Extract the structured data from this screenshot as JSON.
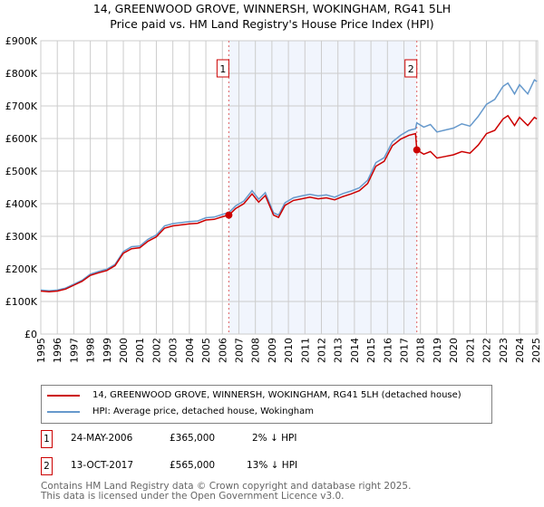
{
  "title": "14, GREENWOOD GROVE, WINNERSH, WOKINGHAM, RG41 5LH",
  "subtitle": "Price paid vs. HM Land Registry's House Price Index (HPI)",
  "chart_data": {
    "type": "line",
    "title": "14, GREENWOOD GROVE, WINNERSH, WOKINGHAM, RG41 5LH",
    "subtitle": "Price paid vs. HM Land Registry's House Price Index (HPI)",
    "xlim": [
      1995,
      2025.1
    ],
    "ylim": [
      0,
      900000
    ],
    "y_ticks": [
      0,
      100000,
      200000,
      300000,
      400000,
      500000,
      600000,
      700000,
      800000,
      900000
    ],
    "y_tick_labels": [
      "£0",
      "£100K",
      "£200K",
      "£300K",
      "£400K",
      "£500K",
      "£600K",
      "£700K",
      "£800K",
      "£900K"
    ],
    "x_ticks": [
      "1995",
      "1996",
      "1997",
      "1998",
      "1999",
      "2000",
      "2001",
      "2002",
      "2003",
      "2004",
      "2005",
      "2006",
      "2007",
      "2008",
      "2009",
      "2010",
      "2011",
      "2012",
      "2013",
      "2014",
      "2015",
      "2016",
      "2017",
      "2018",
      "2019",
      "2020",
      "2021",
      "2022",
      "2023",
      "2024",
      "2025"
    ],
    "grid": true,
    "shaded_range": [
      2006.39,
      2017.78
    ],
    "series": [
      {
        "name": "14, GREENWOOD GROVE, WINNERSH, WOKINGHAM, RG41 5LH (detached house)",
        "color": "#cc0000",
        "x": [
          1995,
          1995.5,
          1996,
          1996.5,
          1997,
          1997.5,
          1998,
          1998.5,
          1999,
          1999.5,
          2000,
          2000.5,
          2001,
          2001.5,
          2002,
          2002.5,
          2003,
          2003.5,
          2004,
          2004.5,
          2005,
          2005.5,
          2006,
          2006.39,
          2006.8,
          2007.3,
          2007.8,
          2008.2,
          2008.6,
          2009.1,
          2009.4,
          2009.8,
          2010.3,
          2010.8,
          2011.3,
          2011.8,
          2012.3,
          2012.8,
          2013.3,
          2013.8,
          2014.3,
          2014.8,
          2015.3,
          2015.8,
          2016.3,
          2016.8,
          2017.3,
          2017.7,
          2017.78,
          2018.2,
          2018.6,
          2019,
          2019.5,
          2020,
          2020.5,
          2021,
          2021.5,
          2022,
          2022.5,
          2023,
          2023.3,
          2023.7,
          2024,
          2024.5,
          2024.9,
          2025.05
        ],
        "y": [
          132000,
          130000,
          132000,
          138000,
          150000,
          162000,
          180000,
          188000,
          195000,
          210000,
          248000,
          262000,
          265000,
          285000,
          298000,
          325000,
          332000,
          335000,
          338000,
          340000,
          350000,
          352000,
          360000,
          365000,
          385000,
          400000,
          430000,
          405000,
          425000,
          365000,
          358000,
          395000,
          410000,
          415000,
          420000,
          415000,
          418000,
          412000,
          422000,
          430000,
          440000,
          462000,
          515000,
          530000,
          578000,
          598000,
          610000,
          615000,
          565000,
          552000,
          560000,
          540000,
          545000,
          550000,
          560000,
          555000,
          580000,
          615000,
          625000,
          660000,
          670000,
          640000,
          665000,
          640000,
          665000,
          660000
        ]
      },
      {
        "name": "HPI: Average price, detached house, Wokingham",
        "color": "#6699cc",
        "x": [
          1995,
          1995.5,
          1996,
          1996.5,
          1997,
          1997.5,
          1998,
          1998.5,
          1999,
          1999.5,
          2000,
          2000.5,
          2001,
          2001.5,
          2002,
          2002.5,
          2003,
          2003.5,
          2004,
          2004.5,
          2005,
          2005.5,
          2006,
          2006.39,
          2006.8,
          2007.3,
          2007.8,
          2008.2,
          2008.6,
          2009.1,
          2009.4,
          2009.8,
          2010.3,
          2010.8,
          2011.3,
          2011.8,
          2012.3,
          2012.8,
          2013.3,
          2013.8,
          2014.3,
          2014.8,
          2015.3,
          2015.8,
          2016.3,
          2016.8,
          2017.3,
          2017.7,
          2017.78,
          2018.2,
          2018.6,
          2019,
          2019.5,
          2020,
          2020.5,
          2021,
          2021.5,
          2022,
          2022.5,
          2023,
          2023.3,
          2023.7,
          2024,
          2024.5,
          2024.9,
          2025.05
        ],
        "y": [
          135000,
          133000,
          135000,
          141000,
          153000,
          165000,
          184000,
          192000,
          199000,
          214000,
          253000,
          268000,
          270000,
          291000,
          304000,
          332000,
          339000,
          342000,
          345000,
          347000,
          357000,
          359000,
          367000,
          373000,
          393000,
          408000,
          440000,
          414000,
          434000,
          372000,
          365000,
          403000,
          418000,
          424000,
          429000,
          424000,
          427000,
          420000,
          431000,
          439000,
          449000,
          472000,
          526000,
          541000,
          590000,
          610000,
          625000,
          630000,
          648000,
          635000,
          643000,
          620000,
          626000,
          632000,
          645000,
          638000,
          668000,
          705000,
          720000,
          760000,
          770000,
          737000,
          765000,
          737000,
          780000,
          775000
        ]
      }
    ]
  },
  "markers": [
    {
      "label": "1",
      "x": 2006.39,
      "y": 365000
    },
    {
      "label": "2",
      "x": 2017.78,
      "y": 565000
    }
  ],
  "legend": {
    "items": [
      "14, GREENWOOD GROVE, WINNERSH, WOKINGHAM, RG41 5LH (detached house)",
      "HPI: Average price, detached house, Wokingham"
    ]
  },
  "transactions": [
    {
      "num": "1",
      "date": "24-MAY-2006",
      "price": "£365,000",
      "hpi": "2% ↓ HPI"
    },
    {
      "num": "2",
      "date": "13-OCT-2017",
      "price": "£565,000",
      "hpi": "13% ↓ HPI"
    }
  ],
  "footer": [
    "Contains HM Land Registry data © Crown copyright and database right 2025.",
    "This data is licensed under the Open Government Licence v3.0."
  ]
}
